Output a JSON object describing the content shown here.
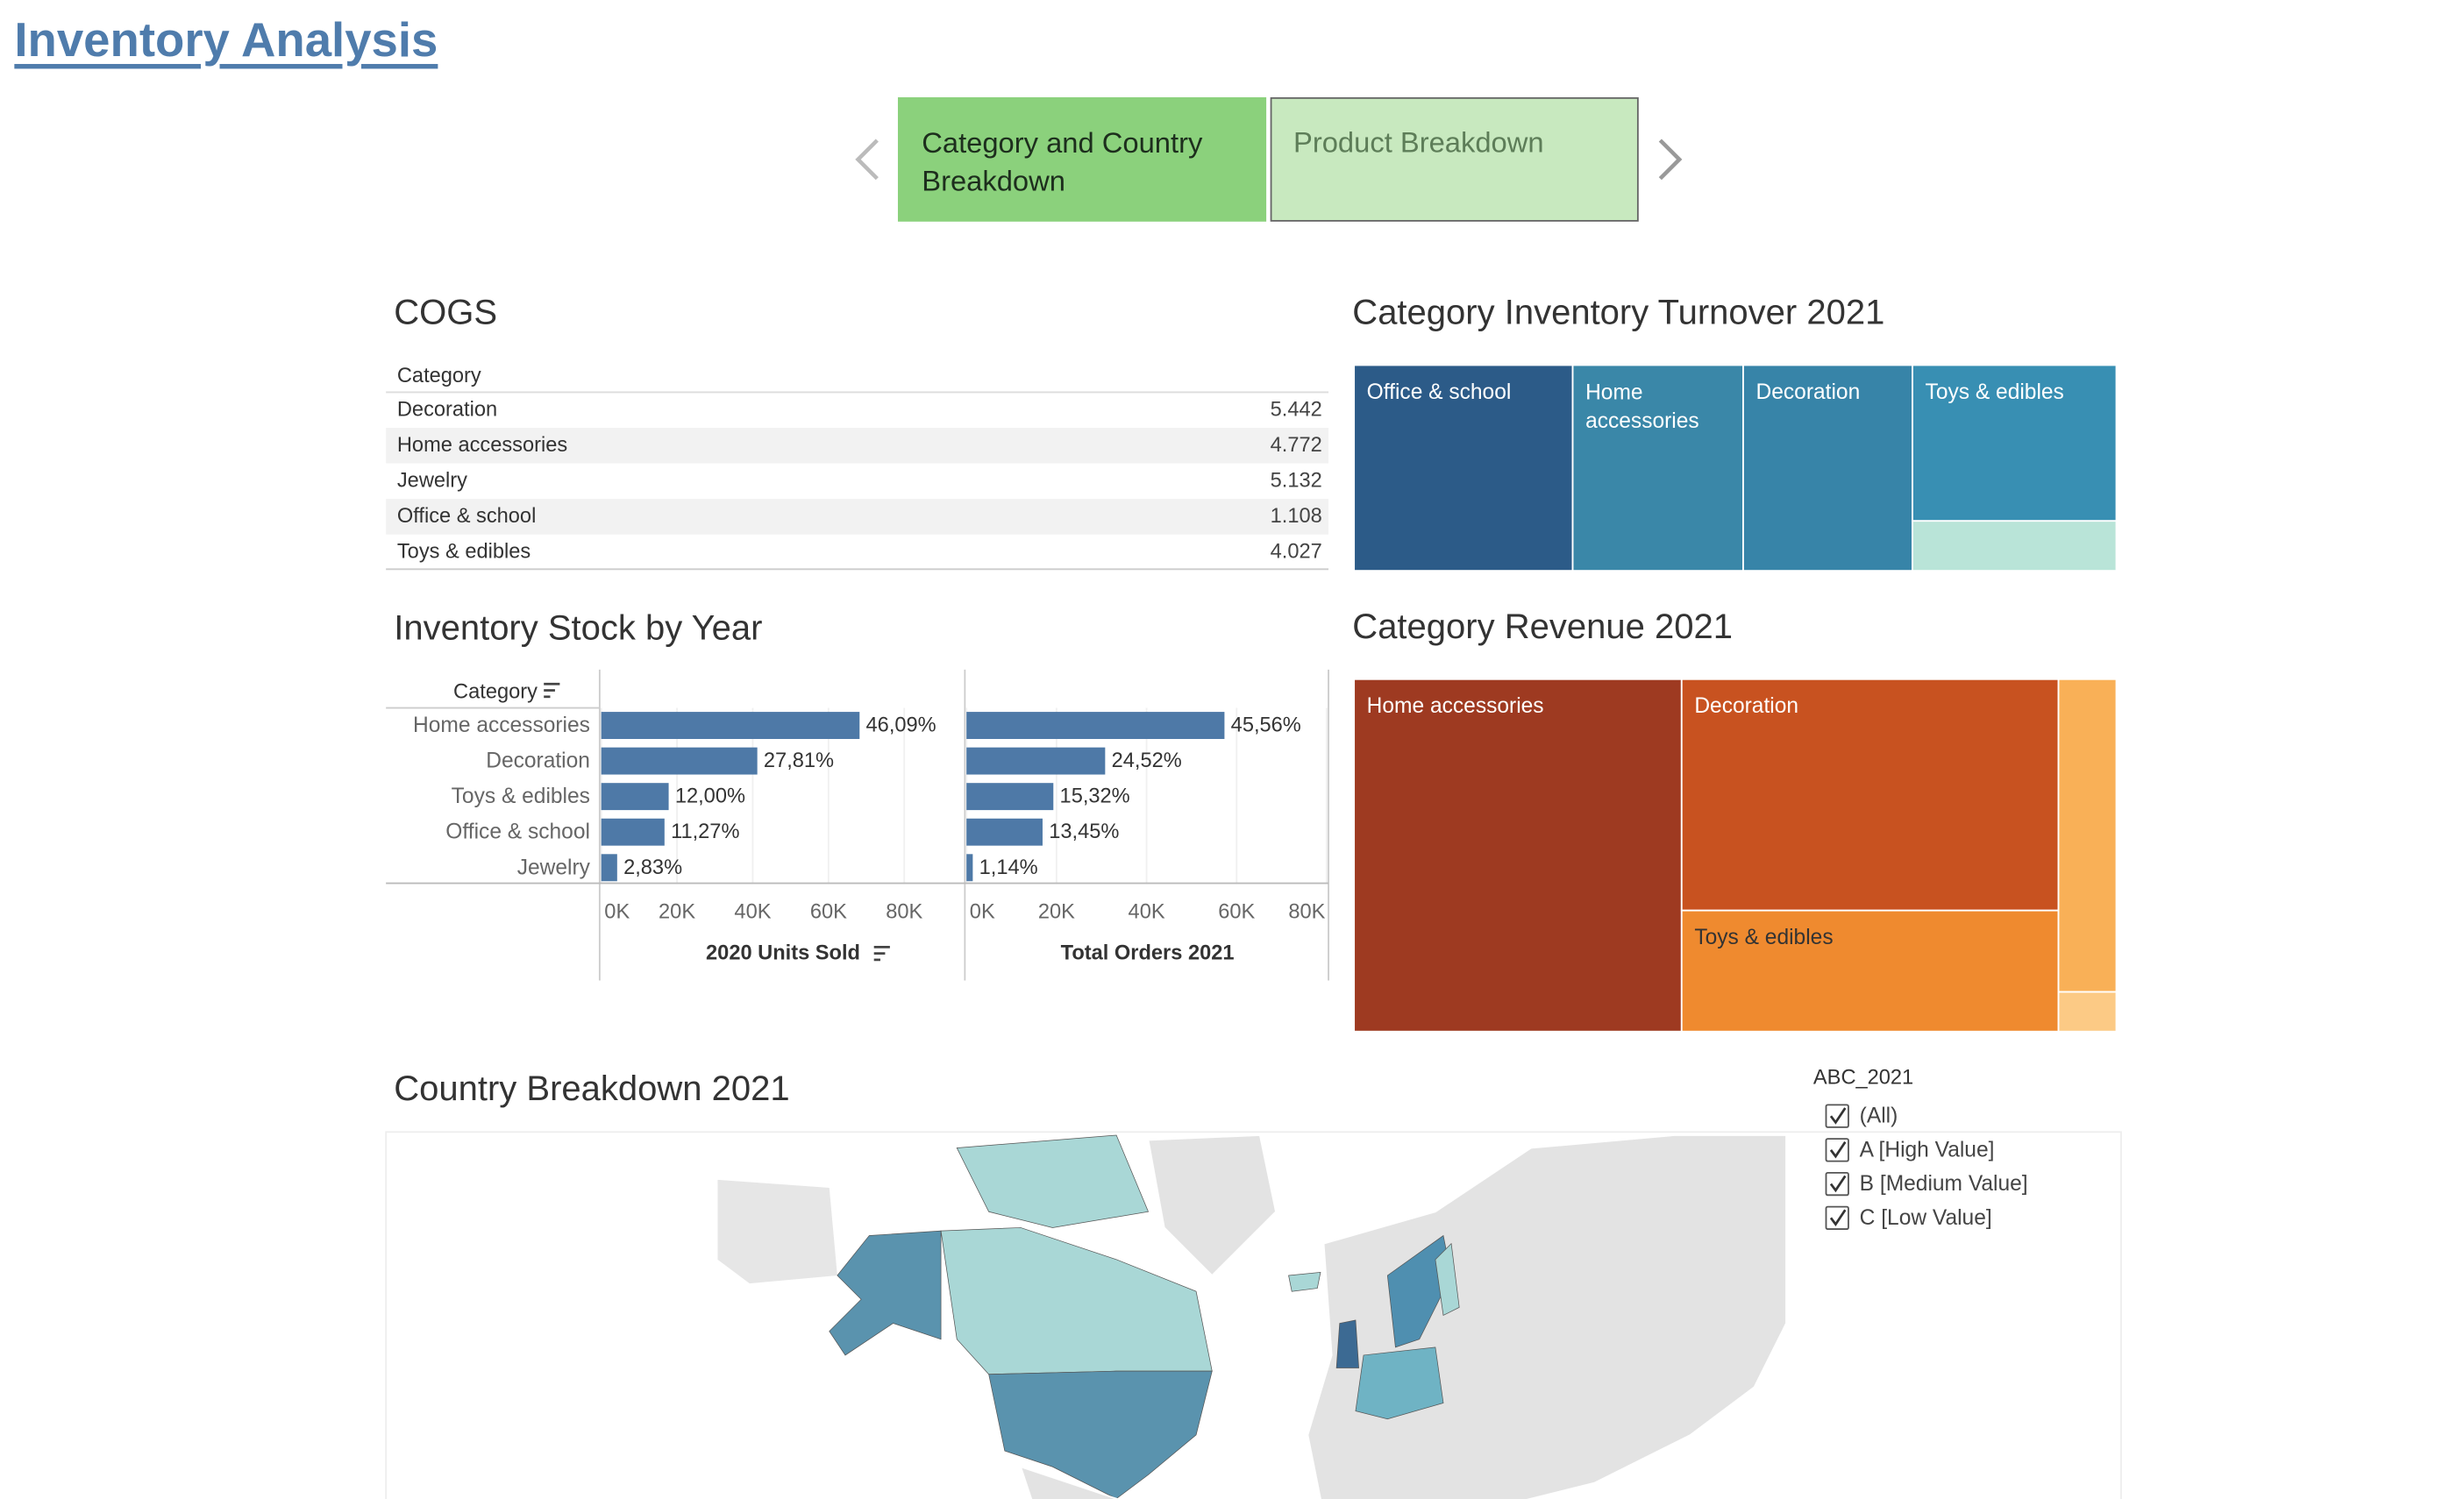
{
  "header": {
    "title": "Inventory Analysis"
  },
  "tabs": [
    "Category and Country Breakdown",
    "Product Breakdown"
  ],
  "cogs": {
    "title": "COGS",
    "header": "Category",
    "rows": [
      [
        "Decoration",
        "5.442"
      ],
      [
        "Home accessories",
        "4.772"
      ],
      [
        "Jewelry",
        "5.132"
      ],
      [
        "Office & school",
        "1.108"
      ],
      [
        "Toys & edibles",
        "4.027"
      ]
    ]
  },
  "chart_data": [
    {
      "type": "bar",
      "title": "Inventory Stock by Year",
      "category_label": "Category",
      "categories": [
        "Home accessories",
        "Decoration",
        "Toys & edibles",
        "Office & school",
        "Jewelry"
      ],
      "panels": [
        {
          "name": "2020 Units Sold",
          "color": "#4e79a7",
          "values": [
            68200,
            41200,
            17800,
            16700,
            4200
          ],
          "share_labels": [
            "46,09%",
            "27,81%",
            "12,00%",
            "11,27%",
            "2,83%"
          ],
          "xlim": [
            0,
            96000
          ],
          "xticks": [
            {
              "value": 0,
              "label": "0K"
            },
            {
              "value": 20000,
              "label": "20K"
            },
            {
              "value": 40000,
              "label": "40K"
            },
            {
              "value": 60000,
              "label": "60K"
            },
            {
              "value": 80000,
              "label": "80K"
            }
          ]
        },
        {
          "name": "Total Orders 2021",
          "color": "#4e79a7",
          "values": [
            57300,
            30800,
            19300,
            16900,
            1400
          ],
          "share_labels": [
            "45,56%",
            "24,52%",
            "15,32%",
            "13,45%",
            "1,14%"
          ],
          "xlim": [
            0,
            80400
          ],
          "xticks": [
            {
              "value": 0,
              "label": "0K"
            },
            {
              "value": 20000,
              "label": "20K"
            },
            {
              "value": 40000,
              "label": "40K"
            },
            {
              "value": 60000,
              "label": "60K"
            },
            {
              "value": 80000,
              "label": "80K"
            }
          ]
        }
      ]
    },
    {
      "type": "treemap",
      "title": "Category Inventory Turnover 2021",
      "categories": [
        "Office & school",
        "Home accessories",
        "Decoration",
        "Toys & edibles",
        null
      ],
      "values": [
        17.7,
        13.8,
        13.7,
        12.5,
        4.0
      ],
      "colors": [
        "#2c5b88",
        "#3a87a8",
        "#3784a8",
        "#388fb3",
        "#b9e4d8"
      ]
    },
    {
      "type": "treemap",
      "title": "Category Revenue 2021",
      "categories": [
        "Home accessories",
        "Decoration",
        "Toys & edibles",
        null,
        null
      ],
      "values": [
        45.3,
        34.2,
        17.9,
        7.1,
        0.9
      ],
      "colors": [
        "#9e3a21",
        "#c85220",
        "#ef8a2f",
        "#f9b057",
        "#fcca85"
      ]
    }
  ],
  "map": {
    "title": "Country Breakdown 2021"
  },
  "filter": {
    "title": "ABC_2021",
    "options": [
      "(All)",
      "A [High Value]",
      "B [Medium Value]",
      "C [Low Value]"
    ]
  }
}
